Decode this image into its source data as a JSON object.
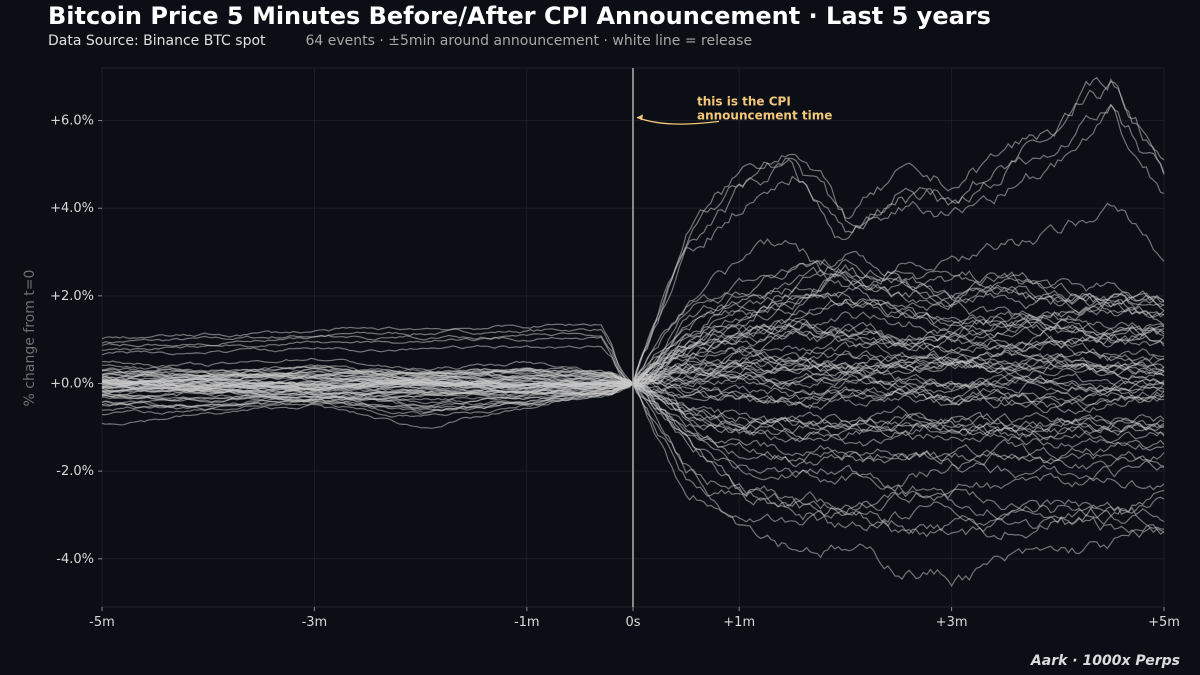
{
  "title": "Bitcoin Price 5 Minutes Before/After CPI Announcement  ·  Last 5 years",
  "subtitle": {
    "source": "Data Source: Binance BTC spot",
    "meta": "64 events  ·  ±5min around announcement  ·  white line = release"
  },
  "watermark": "Aark · 1000x Perps",
  "colors": {
    "background": "#0b0e14",
    "series": "#c8c8c8",
    "annotation": "#f3c77a",
    "release_line": "#b0b0b0"
  },
  "chart_data": {
    "type": "line",
    "title": "Bitcoin Price 5 Minutes Before/After CPI Announcement  ·  Last 5 years",
    "ylabel": "% change from t=0",
    "xlim": [
      -5,
      5
    ],
    "ylim": [
      -5.1,
      7.2
    ],
    "x_ticks": [
      {
        "value": -5,
        "label": "-5m"
      },
      {
        "value": -3,
        "label": "-3m"
      },
      {
        "value": -1,
        "label": "-1m"
      },
      {
        "value": 0,
        "label": "0s"
      },
      {
        "value": 1,
        "label": "+1m"
      },
      {
        "value": 3,
        "label": "+3m"
      },
      {
        "value": 5,
        "label": "+5m"
      }
    ],
    "y_ticks": [
      {
        "value": 6,
        "label": "+6.0%"
      },
      {
        "value": 4,
        "label": "+4.0%"
      },
      {
        "value": 2,
        "label": "+2.0%"
      },
      {
        "value": 0,
        "label": "+0.0%"
      },
      {
        "value": -2,
        "label": "-2.0%"
      },
      {
        "value": -4,
        "label": "-4.0%"
      }
    ],
    "grid": true,
    "release_line_x": 0,
    "annotation": {
      "lines": [
        "this is the CPI",
        "announcement time"
      ],
      "x": 0,
      "y": 6.05
    },
    "series_count": 64,
    "series": [
      {
        "x": [
          -5,
          -4,
          -3,
          -2,
          -1,
          -0.3,
          0,
          0.5,
          1,
          1.5,
          2,
          2.5,
          3,
          3.5,
          4,
          4.5,
          5
        ],
        "values": [
          0.95,
          1.0,
          1.1,
          1.15,
          1.2,
          1.25,
          0,
          3.2,
          4.5,
          5.3,
          3.6,
          4.4,
          4.3,
          5.0,
          5.6,
          6.6,
          4.8
        ]
      },
      {
        "x": [
          -5,
          -4,
          -3,
          -2,
          -1,
          0,
          0.5,
          1,
          1.5,
          2,
          2.5,
          3,
          3.5,
          4,
          4.5,
          5
        ],
        "values": [
          0.3,
          0.2,
          0.4,
          0.1,
          0.3,
          0,
          1.6,
          2.2,
          2.6,
          2.8,
          2.5,
          2.3,
          2.4,
          2.2,
          2.1,
          2.0
        ]
      },
      {
        "x": [
          -5,
          -4,
          -3,
          -2,
          -1,
          0,
          0.5,
          1,
          1.5,
          2,
          2.5,
          3,
          3.5,
          4,
          4.5,
          5
        ],
        "values": [
          -0.1,
          0.1,
          0.0,
          0.2,
          -0.1,
          0,
          0.9,
          1.5,
          2.0,
          2.6,
          2.2,
          1.9,
          2.1,
          1.8,
          1.9,
          1.7
        ]
      },
      {
        "x": [
          -5,
          -4,
          -3,
          -2,
          -1,
          0,
          0.5,
          1,
          1.5,
          2,
          2.5,
          3,
          3.5,
          4,
          4.5,
          5
        ],
        "values": [
          0.1,
          0.0,
          -0.1,
          0.1,
          0.0,
          0,
          1.2,
          1.6,
          1.8,
          1.9,
          1.6,
          1.5,
          1.4,
          1.5,
          1.6,
          1.4
        ]
      },
      {
        "x": [
          -5,
          -4,
          -3,
          -2,
          -1,
          0,
          0.5,
          1,
          1.5,
          2,
          2.5,
          3,
          3.5,
          4,
          4.5,
          5
        ],
        "values": [
          -0.2,
          -0.1,
          0.1,
          0.0,
          0.1,
          0,
          0.8,
          1.1,
          1.3,
          1.2,
          1.0,
          1.1,
          1.2,
          1.3,
          1.1,
          1.2
        ]
      },
      {
        "x": [
          -5,
          -4,
          -3,
          -2,
          -1,
          0,
          0.5,
          1,
          1.5,
          2,
          2.5,
          3,
          3.5,
          4,
          4.5,
          5
        ],
        "values": [
          0.0,
          0.1,
          0.2,
          0.0,
          -0.1,
          0,
          0.5,
          0.7,
          0.6,
          0.9,
          0.8,
          0.7,
          0.9,
          0.8,
          0.7,
          0.6
        ]
      },
      {
        "x": [
          -5,
          -4,
          -3,
          -2,
          -1,
          0,
          0.5,
          1,
          1.5,
          2,
          2.5,
          3,
          3.5,
          4,
          4.5,
          5
        ],
        "values": [
          0.1,
          -0.1,
          0.0,
          0.1,
          0.0,
          0,
          0.3,
          0.4,
          0.5,
          0.3,
          0.4,
          0.5,
          0.3,
          0.4,
          0.2,
          0.3
        ]
      },
      {
        "x": [
          -5,
          -4,
          -3,
          -2,
          -1,
          0,
          0.5,
          1,
          1.5,
          2,
          2.5,
          3,
          3.5,
          4,
          4.5,
          5
        ],
        "values": [
          -0.1,
          0.0,
          -0.2,
          0.0,
          0.1,
          0,
          0.1,
          0.2,
          0.0,
          0.1,
          0.0,
          -0.1,
          0.0,
          0.1,
          -0.1,
          0.0
        ]
      },
      {
        "x": [
          -5,
          -4,
          -3,
          -2,
          -1,
          0,
          0.5,
          1,
          1.5,
          2,
          2.5,
          3,
          3.5,
          4,
          4.5,
          5
        ],
        "values": [
          0.2,
          0.1,
          0.0,
          -0.1,
          0.0,
          0,
          -0.2,
          -0.3,
          -0.4,
          -0.3,
          -0.2,
          -0.4,
          -0.3,
          -0.5,
          -0.4,
          -0.3
        ]
      },
      {
        "x": [
          -5,
          -4,
          -3,
          -2,
          -1,
          0,
          0.5,
          1,
          1.5,
          2,
          2.5,
          3,
          3.5,
          4,
          4.5,
          5
        ],
        "values": [
          -0.4,
          -0.5,
          -0.3,
          -0.6,
          -0.4,
          0,
          -0.6,
          -0.8,
          -0.9,
          -1.0,
          -0.8,
          -0.9,
          -1.1,
          -1.0,
          -0.9,
          -1.0
        ]
      },
      {
        "x": [
          -5,
          -4,
          -3,
          -2,
          -1,
          0,
          0.5,
          1,
          1.5,
          2,
          2.5,
          3,
          3.5,
          4,
          4.5,
          5
        ],
        "values": [
          0.0,
          -0.2,
          -0.1,
          -0.3,
          -0.2,
          0,
          -1.0,
          -1.3,
          -1.6,
          -1.5,
          -1.4,
          -1.6,
          -1.5,
          -1.7,
          -1.6,
          -1.5
        ]
      },
      {
        "x": [
          -5,
          -4,
          -3,
          -2,
          -1,
          0,
          0.5,
          1,
          1.5,
          2,
          2.5,
          3,
          3.5,
          4,
          4.5,
          5
        ],
        "values": [
          -0.9,
          -0.7,
          -0.5,
          -1.0,
          -0.6,
          0,
          -1.4,
          -1.9,
          -2.1,
          -2.0,
          -2.2,
          -1.9,
          -2.0,
          -2.1,
          -2.2,
          -2.4
        ]
      },
      {
        "x": [
          -5,
          -4,
          -3,
          -2,
          -1,
          0,
          0.5,
          1,
          1.5,
          2,
          2.5,
          3,
          3.5,
          4,
          4.5,
          5
        ],
        "values": [
          -0.3,
          -0.2,
          -0.4,
          -0.2,
          -0.3,
          0,
          -2.2,
          -2.5,
          -2.8,
          -2.9,
          -2.7,
          -2.6,
          -2.8,
          -2.9,
          -3.0,
          -3.1
        ]
      },
      {
        "x": [
          -5,
          -4,
          -3,
          -2,
          -1,
          0,
          0.5,
          1,
          1.5,
          2,
          2.5,
          3,
          3.5,
          4,
          4.5,
          5
        ],
        "values": [
          0.1,
          0.0,
          -0.1,
          0.0,
          -0.1,
          0,
          -1.8,
          -3.0,
          -3.6,
          -3.8,
          -4.2,
          -4.4,
          -4.1,
          -3.9,
          -3.7,
          -3.4
        ]
      }
    ]
  }
}
